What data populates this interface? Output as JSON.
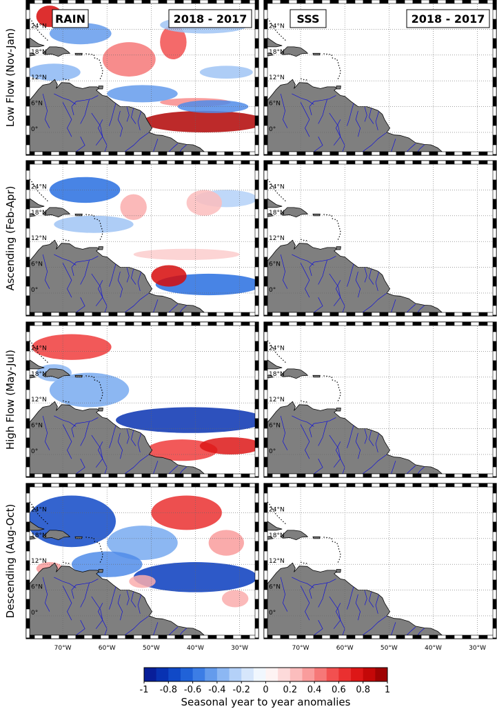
{
  "chart_data": [
    {
      "type": "heatmap",
      "title": "RAIN",
      "period": "2018 - 2017",
      "rows": [
        {
          "label": "Low Flow (Nov-Jan)",
          "features": [
            {
              "kind": "pos",
              "lon": -73,
              "lat": 27,
              "rlon": 3,
              "rlat": 2.5,
              "v": 0.8
            },
            {
              "kind": "pos",
              "lon": -55,
              "lat": 17,
              "rlon": 6,
              "rlat": 4,
              "v": 0.45
            },
            {
              "kind": "pos",
              "lon": -45,
              "lat": 21,
              "rlon": 3,
              "rlat": 4,
              "v": 0.55
            },
            {
              "kind": "pos",
              "lon": -38,
              "lat": 2.5,
              "rlon": 14,
              "rlat": 2.5,
              "v": 0.9
            },
            {
              "kind": "pos",
              "lon": -40,
              "lat": 7,
              "rlon": 8,
              "rlat": 1,
              "v": 0.4
            },
            {
              "kind": "neg",
              "lon": -66,
              "lat": 23,
              "rlon": 7,
              "rlat": 2.5,
              "v": -0.45
            },
            {
              "kind": "neg",
              "lon": -38,
              "lat": 25,
              "rlon": 10,
              "rlat": 2,
              "v": -0.3
            },
            {
              "kind": "neg",
              "lon": -52,
              "lat": 9,
              "rlon": 8,
              "rlat": 2,
              "v": -0.45
            },
            {
              "kind": "neg",
              "lon": -33,
              "lat": 14,
              "rlon": 6,
              "rlat": 1.5,
              "v": -0.3
            },
            {
              "kind": "neg",
              "lon": -36,
              "lat": 6,
              "rlon": 8,
              "rlat": 1.5,
              "v": -0.5
            },
            {
              "kind": "neg",
              "lon": -72,
              "lat": 14,
              "rlon": 6,
              "rlat": 2,
              "v": -0.35
            }
          ]
        },
        {
          "label": "Ascending (Feb-Apr)",
          "features": [
            {
              "kind": "neg",
              "lon": -65,
              "lat": 24,
              "rlon": 8,
              "rlat": 3,
              "v": -0.6
            },
            {
              "kind": "neg",
              "lon": -63,
              "lat": 16,
              "rlon": 9,
              "rlat": 2,
              "v": -0.3
            },
            {
              "kind": "neg",
              "lon": -37,
              "lat": 2,
              "rlon": 12,
              "rlat": 2.5,
              "v": -0.6
            },
            {
              "kind": "neg",
              "lon": -33,
              "lat": 22,
              "rlon": 7,
              "rlat": 2,
              "v": -0.25
            },
            {
              "kind": "pos",
              "lon": -54,
              "lat": 20,
              "rlon": 3,
              "rlat": 3,
              "v": 0.3
            },
            {
              "kind": "pos",
              "lon": -46,
              "lat": 4,
              "rlon": 4,
              "rlat": 2.5,
              "v": 0.8
            },
            {
              "kind": "pos",
              "lon": -42,
              "lat": 9,
              "rlon": 12,
              "rlat": 1.3,
              "v": 0.2
            },
            {
              "kind": "pos",
              "lon": -38,
              "lat": 21,
              "rlon": 4,
              "rlat": 3,
              "v": 0.25
            }
          ]
        },
        {
          "label": "High Flow (May-Jul)",
          "features": [
            {
              "kind": "pos",
              "lon": -68,
              "lat": 25,
              "rlon": 9,
              "rlat": 3,
              "v": 0.6
            },
            {
              "kind": "pos",
              "lon": -43,
              "lat": 1,
              "rlon": 8,
              "rlat": 2.5,
              "v": 0.6
            },
            {
              "kind": "pos",
              "lon": -32,
              "lat": 2,
              "rlon": 7,
              "rlat": 2,
              "v": 0.75
            },
            {
              "kind": "neg",
              "lon": -41,
              "lat": 8,
              "rlon": 17,
              "rlat": 3,
              "v": -0.85
            },
            {
              "kind": "neg",
              "lon": -64,
              "lat": 15,
              "rlon": 9,
              "rlat": 4,
              "v": -0.4
            },
            {
              "kind": "neg",
              "lon": -72,
              "lat": 19,
              "rlon": 4,
              "rlat": 2,
              "v": -0.35
            }
          ]
        },
        {
          "label": "Descending (Aug-Oct)",
          "features": [
            {
              "kind": "neg",
              "lon": -68,
              "lat": 22,
              "rlon": 10,
              "rlat": 6,
              "v": -0.75
            },
            {
              "kind": "neg",
              "lon": -40,
              "lat": 9,
              "rlon": 14,
              "rlat": 3.5,
              "v": -0.8
            },
            {
              "kind": "neg",
              "lon": -52,
              "lat": 17,
              "rlon": 8,
              "rlat": 4,
              "v": -0.4
            },
            {
              "kind": "neg",
              "lon": -60,
              "lat": 12,
              "rlon": 8,
              "rlat": 3,
              "v": -0.5
            },
            {
              "kind": "pos",
              "lon": -42,
              "lat": 24,
              "rlon": 8,
              "rlat": 4,
              "v": 0.65
            },
            {
              "kind": "pos",
              "lon": -33,
              "lat": 17,
              "rlon": 4,
              "rlat": 3,
              "v": 0.35
            },
            {
              "kind": "pos",
              "lon": -31,
              "lat": 4,
              "rlon": 3,
              "rlat": 2,
              "v": 0.3
            },
            {
              "kind": "pos",
              "lon": -52,
              "lat": 8,
              "rlon": 3,
              "rlat": 1.5,
              "v": 0.3
            },
            {
              "kind": "pos",
              "lon": -73,
              "lat": 11,
              "rlon": 3,
              "rlat": 1.5,
              "v": 0.35
            }
          ]
        }
      ]
    },
    {
      "type": "heatmap",
      "title": "SSS",
      "period": "2018 - 2017",
      "rows": [
        {
          "label": "Low Flow (Nov-Jan)",
          "features": []
        },
        {
          "label": "Ascending (Feb-Apr)",
          "features": []
        },
        {
          "label": "High Flow (May-Jul)",
          "features": []
        },
        {
          "label": "Descending (Aug-Oct)",
          "features": []
        }
      ]
    }
  ],
  "axes": {
    "lon_range": [
      -77.5,
      -26.5
    ],
    "lat_range": [
      -4.5,
      30
    ],
    "x_ticks": [
      {
        "value": -70,
        "label": "70°W"
      },
      {
        "value": -60,
        "label": "60°W"
      },
      {
        "value": -50,
        "label": "50°W"
      },
      {
        "value": -40,
        "label": "40°W"
      },
      {
        "value": -30,
        "label": "30°W"
      }
    ],
    "y_ticks": [
      {
        "value": 0,
        "label": "0°"
      },
      {
        "value": 6,
        "label": "6°N"
      },
      {
        "value": 12,
        "label": "12°N"
      },
      {
        "value": 18,
        "label": "18°N"
      },
      {
        "value": 24,
        "label": "24°N"
      }
    ],
    "grid": true
  },
  "colorbar": {
    "label": "Seasonal year to year anomalies",
    "range": [
      -1,
      1
    ],
    "ticks": [
      "-1",
      "-0.8",
      "-0.6",
      "-0.4",
      "-0.2",
      "0",
      "0.2",
      "0.4",
      "0.6",
      "0.8",
      "1"
    ],
    "negative_color": "#08148c",
    "positive_color": "#8c0000",
    "neutral_color": "#ffffff"
  },
  "colors": {
    "land": "#7f7f7f",
    "coastline": "#000000",
    "rivers": "#1010d8"
  }
}
